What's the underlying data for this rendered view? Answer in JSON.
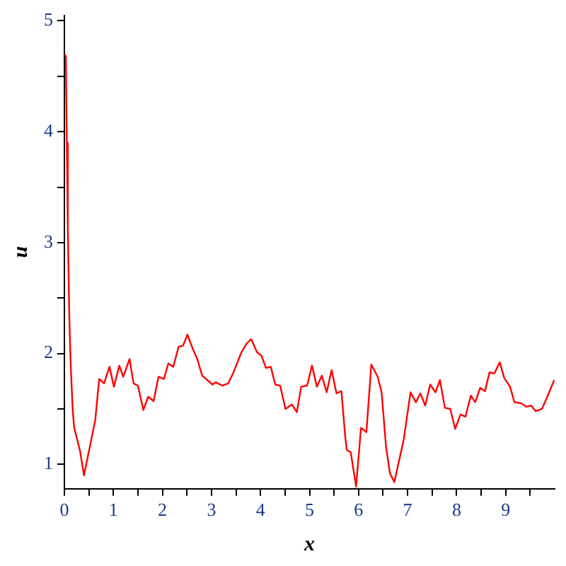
{
  "chart_data": {
    "type": "line",
    "xlabel": "x",
    "ylabel": "u",
    "xlim": [
      0,
      10
    ],
    "ylim": [
      0.78,
      5.05
    ],
    "xticks": [
      0,
      {
        "value": 0.5,
        "label": null
      },
      1,
      {
        "value": 1.5,
        "label": null
      },
      2,
      {
        "value": 2.5,
        "label": null
      },
      3,
      {
        "value": 3.5,
        "label": null
      },
      4,
      {
        "value": 4.5,
        "label": null
      },
      5,
      {
        "value": 5.5,
        "label": null
      },
      6,
      {
        "value": 6.5,
        "label": null
      },
      7,
      {
        "value": 7.5,
        "label": null
      },
      8,
      {
        "value": 8.5,
        "label": null
      },
      9,
      {
        "value": 9.5,
        "label": null
      }
    ],
    "yticks": [
      1,
      {
        "value": 1.5,
        "label": null
      },
      2,
      {
        "value": 2.5,
        "label": null
      },
      3,
      {
        "value": 3.5,
        "label": null
      },
      4,
      {
        "value": 4.5,
        "label": null
      },
      5
    ],
    "grid": false,
    "legend": false,
    "marker": "none",
    "line_style": "solid",
    "series": [
      {
        "color": "#ff0000",
        "x": [
          0,
          0.03,
          0.05,
          0.07,
          0.1,
          0.13,
          0.17,
          0.2,
          0.32,
          0.4,
          0.52,
          0.63,
          0.71,
          0.81,
          0.92,
          1.01,
          1.12,
          1.2,
          1.33,
          1.41,
          1.5,
          1.61,
          1.71,
          1.82,
          1.92,
          2.03,
          2.12,
          2.22,
          2.33,
          2.42,
          2.51,
          2.62,
          2.71,
          2.81,
          3.02,
          3.09,
          3.22,
          3.34,
          3.45,
          3.61,
          3.72,
          3.81,
          3.93,
          4.02,
          4.11,
          4.21,
          4.3,
          4.4,
          4.51,
          4.64,
          4.74,
          4.83,
          4.95,
          5.05,
          5.15,
          5.25,
          5.35,
          5.45,
          5.55,
          5.65,
          5.73,
          5.76,
          5.84,
          5.95,
          6.05,
          6.16,
          6.26,
          6.39,
          6.47,
          6.56,
          6.64,
          6.73,
          6.81,
          6.92,
          7.06,
          7.17,
          7.26,
          7.36,
          7.46,
          7.57,
          7.66,
          7.76,
          7.87,
          7.97,
          8.08,
          8.18,
          8.29,
          8.38,
          8.48,
          8.58,
          8.67,
          8.77,
          8.88,
          8.97,
          9.09,
          9.18,
          9.32,
          9.42,
          9.52,
          9.61,
          9.74,
          9.85,
          9.99
        ],
        "values": [
          4.7,
          4.68,
          3.9,
          3.13,
          2.34,
          1.88,
          1.49,
          1.33,
          1.12,
          0.9,
          1.16,
          1.4,
          1.77,
          1.73,
          1.88,
          1.7,
          1.89,
          1.79,
          1.95,
          1.73,
          1.71,
          1.49,
          1.61,
          1.57,
          1.79,
          1.77,
          1.91,
          1.88,
          2.06,
          2.07,
          2.17,
          2.04,
          1.95,
          1.8,
          1.72,
          1.74,
          1.71,
          1.73,
          1.83,
          2.01,
          2.09,
          2.13,
          2.01,
          1.98,
          1.87,
          1.88,
          1.72,
          1.71,
          1.5,
          1.54,
          1.47,
          1.7,
          1.71,
          1.89,
          1.7,
          1.8,
          1.65,
          1.85,
          1.64,
          1.66,
          1.24,
          1.13,
          1.11,
          0.8,
          1.33,
          1.29,
          1.9,
          1.79,
          1.65,
          1.16,
          0.92,
          0.84,
          1.0,
          1.22,
          1.65,
          1.56,
          1.64,
          1.53,
          1.72,
          1.65,
          1.76,
          1.51,
          1.5,
          1.32,
          1.45,
          1.43,
          1.62,
          1.56,
          1.69,
          1.66,
          1.83,
          1.82,
          1.92,
          1.78,
          1.7,
          1.56,
          1.55,
          1.52,
          1.53,
          1.48,
          1.5,
          1.61,
          1.76
        ]
      }
    ]
  }
}
